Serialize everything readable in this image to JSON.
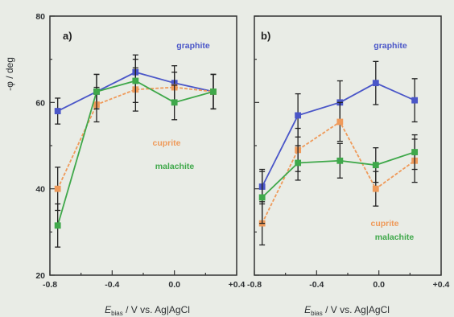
{
  "ylabel": "-φ / deg",
  "xlabel": {
    "main": "E",
    "sub": "bias",
    "rest": " / V vs. Ag|AgCl"
  },
  "colors": {
    "graphite": "#4a56c8",
    "cuprite": "#ef9a5a",
    "malachite": "#3fa84a",
    "errorbar": "#222222",
    "axis": "#333333"
  },
  "chart_data": [
    {
      "type": "line",
      "panel_label": "a)",
      "xlim": [
        -0.8,
        0.4
      ],
      "ylim": [
        20,
        80
      ],
      "x_ticks": [
        "-0.8",
        "-0.4",
        "0.0",
        "+0.4"
      ],
      "y_ticks": [
        "20",
        "40",
        "60",
        "80"
      ],
      "series": [
        {
          "name": "graphite",
          "line_style": "solid",
          "points": [
            [
              -0.75,
              58,
              3
            ],
            [
              -0.5,
              62.5,
              4
            ],
            [
              -0.25,
              67,
              4
            ],
            [
              0.0,
              64.5,
              4
            ],
            [
              0.25,
              62.5,
              4
            ]
          ]
        },
        {
          "name": "cuprite",
          "line_style": "dashed",
          "points": [
            [
              -0.75,
              40,
              5
            ],
            [
              -0.5,
              59.5,
              4
            ],
            [
              -0.25,
              63,
              5
            ],
            [
              0.0,
              63.5,
              3.5
            ],
            [
              0.25,
              62.5,
              4
            ]
          ]
        },
        {
          "name": "malachite",
          "line_style": "solid",
          "points": [
            [
              -0.75,
              31.5,
              5
            ],
            [
              -0.5,
              62.5,
              4
            ],
            [
              -0.25,
              65,
              5
            ],
            [
              0.0,
              60,
              4
            ],
            [
              0.25,
              62.5,
              4
            ]
          ]
        }
      ]
    },
    {
      "type": "line",
      "panel_label": "b)",
      "xlim": [
        -0.8,
        0.4
      ],
      "ylim": [
        20,
        80
      ],
      "x_ticks": [
        "-0.8",
        "-0.4",
        "0.0",
        "+0.4"
      ],
      "y_ticks": [],
      "series": [
        {
          "name": "graphite",
          "line_style": "solid",
          "points": [
            [
              -0.75,
              40.5,
              4
            ],
            [
              -0.52,
              57,
              5
            ],
            [
              -0.25,
              60,
              5
            ],
            [
              -0.02,
              64.5,
              5
            ],
            [
              0.23,
              60.5,
              5
            ]
          ]
        },
        {
          "name": "cuprite",
          "line_style": "dashed",
          "points": [
            [
              -0.75,
              32,
              5
            ],
            [
              -0.52,
              49,
              5
            ],
            [
              -0.25,
              55.5,
              4.5
            ],
            [
              -0.02,
              40,
              4
            ],
            [
              0.23,
              46.5,
              5
            ]
          ]
        },
        {
          "name": "malachite",
          "line_style": "solid",
          "points": [
            [
              -0.75,
              38,
              6
            ],
            [
              -0.52,
              46,
              4
            ],
            [
              -0.25,
              46.5,
              4
            ],
            [
              -0.02,
              45.5,
              4
            ],
            [
              0.23,
              48.5,
              4
            ]
          ]
        }
      ]
    }
  ]
}
